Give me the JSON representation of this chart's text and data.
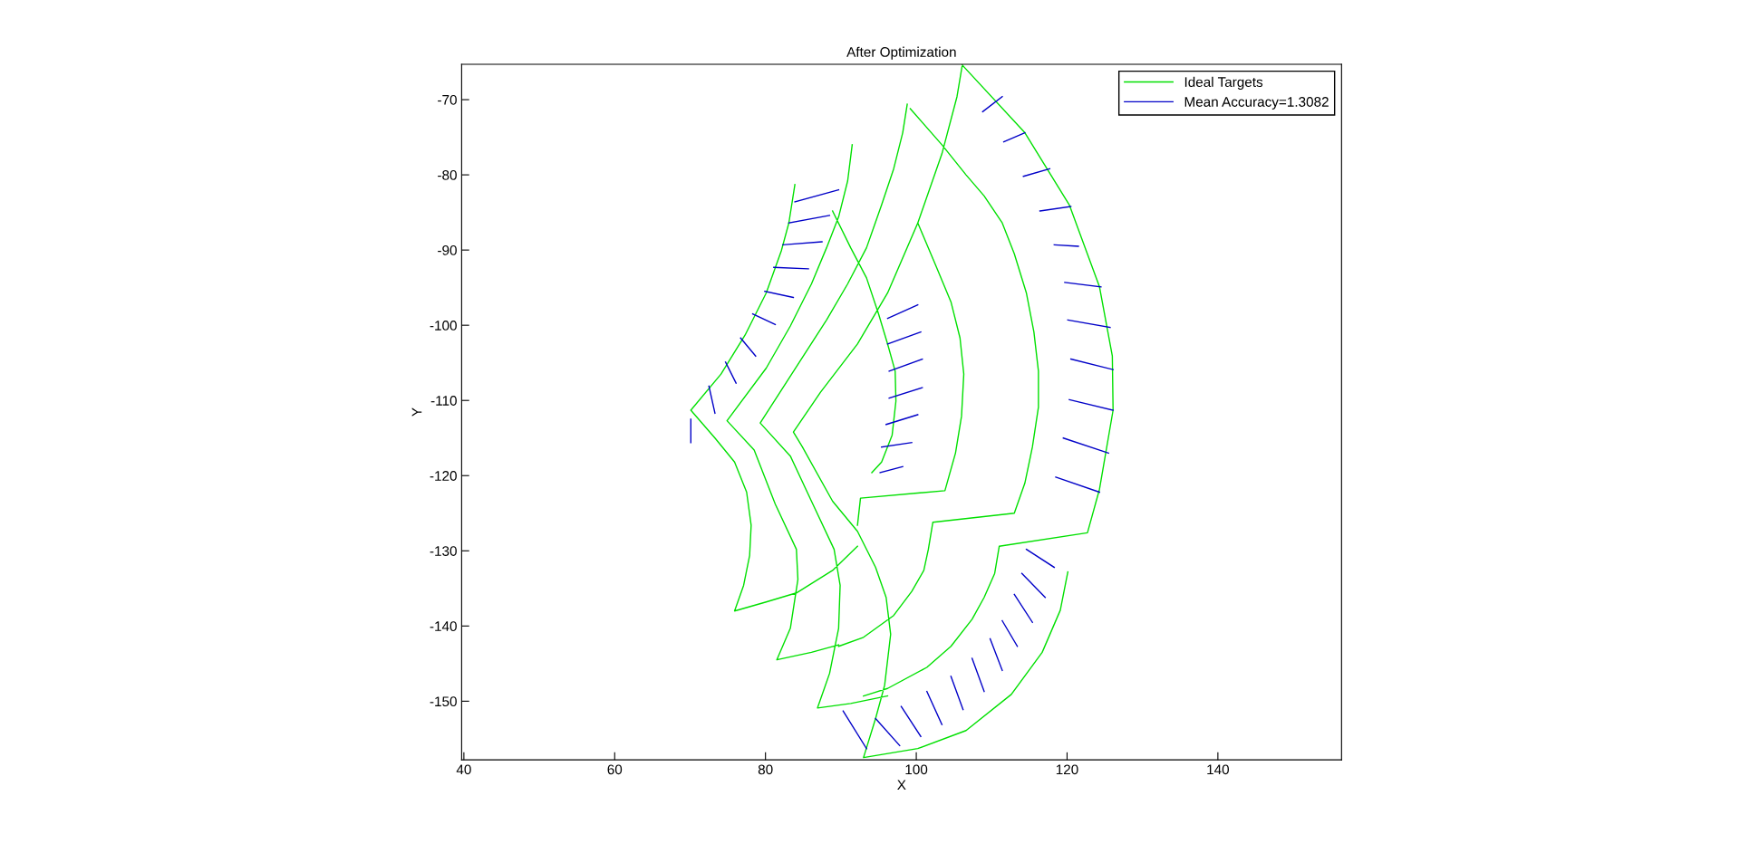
{
  "chart_data": {
    "type": "line",
    "title": "After Optimization",
    "xlabel": "X",
    "ylabel": "Y",
    "xlim": [
      39.7,
      156.4
    ],
    "ylim": [
      -157.8,
      -65.3
    ],
    "xticks": [
      40,
      60,
      80,
      100,
      120,
      140
    ],
    "yticks": [
      -150,
      -140,
      -130,
      -120,
      -110,
      -100,
      -90,
      -80,
      -70
    ],
    "grid": false,
    "legend": "top right",
    "marker": "none",
    "line_style": "solid",
    "series": [
      {
        "name": "Ideal Targets",
        "color": "#00e000",
        "x": [
          106.1,
          114.4,
          120.3,
          124.3,
          126.0,
          126.1,
          124.3,
          122.7,
          111.0,
          110.4,
          109.0,
          107.4,
          104.6,
          101.4,
          96.2,
          93.0,
          null,
          120.1,
          119.1,
          116.7,
          112.6,
          106.6,
          100.2,
          93.0,
          94.6,
          95.8,
          96.6,
          96.0,
          94.6,
          92.2,
          88.9,
          84.9,
          83.7,
          87.3,
          92.2,
          96.2,
          100.2,
          103.4,
          105.4,
          106.1,
          null,
          99.2,
          103.4,
          106.6,
          109.0,
          111.4,
          113.0,
          114.6,
          115.6,
          116.2,
          116.2,
          115.4,
          114.4,
          113.0,
          102.2,
          101.6,
          101.0,
          99.4,
          97.0,
          93.0,
          89.7,
          null,
          100.2,
          102.6,
          104.6,
          105.8,
          106.3,
          106.0,
          105.2,
          103.8,
          92.6,
          92.2,
          null,
          88.9,
          91.3,
          93.4,
          95.0,
          96.2,
          97.2,
          97.3,
          96.8,
          95.4,
          94.1,
          null,
          83.9,
          83.1,
          82.1,
          80.1,
          77.3,
          74.1,
          70.1,
          73.3,
          75.9,
          77.5,
          78.1,
          77.9,
          77.1,
          75.9,
          80.1,
          84.1,
          88.9,
          92.2,
          null,
          91.5,
          90.9,
          89.7,
          88.1,
          86.1,
          83.3,
          80.1,
          74.9,
          78.5,
          81.3,
          84.1,
          84.3,
          83.3,
          81.5,
          86.1,
          89.7,
          null,
          98.8,
          98.2,
          97.0,
          95.4,
          93.4,
          90.9,
          88.1,
          84.5,
          79.3,
          83.3,
          86.1,
          89.1,
          89.9,
          89.7,
          88.5,
          86.9,
          91.3,
          96.2
        ],
        "values": [
          -65.4,
          -74.4,
          -84.0,
          -94.9,
          -104.1,
          -111.3,
          -121.8,
          -127.6,
          -129.4,
          -133.0,
          -136.2,
          -139.1,
          -142.7,
          -145.5,
          -148.3,
          -149.3,
          null,
          -132.8,
          -137.9,
          -143.5,
          -149.1,
          -153.9,
          -156.3,
          -157.5,
          -152.3,
          -147.9,
          -141.1,
          -136.2,
          -132.2,
          -127.4,
          -123.4,
          -116.2,
          -114.2,
          -108.9,
          -102.5,
          -95.7,
          -86.4,
          -77.2,
          -69.6,
          -65.4,
          null,
          -71.2,
          -76.0,
          -80.0,
          -82.8,
          -86.4,
          -90.5,
          -95.7,
          -100.9,
          -106.1,
          -110.9,
          -116.2,
          -121.0,
          -125.0,
          -126.2,
          -129.8,
          -132.6,
          -135.4,
          -138.6,
          -141.5,
          -142.7,
          null,
          -86.4,
          -92.1,
          -96.9,
          -101.7,
          -106.5,
          -112.1,
          -117.0,
          -122.0,
          -123.0,
          -126.6,
          null,
          -84.8,
          -89.7,
          -93.7,
          -98.5,
          -102.5,
          -106.1,
          -110.1,
          -114.6,
          -118.2,
          -119.6,
          null,
          -81.3,
          -86.4,
          -90.1,
          -95.7,
          -101.3,
          -106.5,
          -111.3,
          -115.0,
          -118.2,
          -122.2,
          -126.6,
          -130.6,
          -134.6,
          -138.0,
          -136.8,
          -135.6,
          -132.6,
          -129.4,
          null,
          -76.0,
          -80.8,
          -85.6,
          -89.7,
          -94.5,
          -100.1,
          -105.7,
          -112.7,
          -116.6,
          -123.8,
          -129.8,
          -133.8,
          -140.3,
          -144.5,
          -143.5,
          -142.5,
          null,
          -70.6,
          -74.4,
          -79.2,
          -84.0,
          -89.7,
          -94.5,
          -99.3,
          -104.9,
          -113.0,
          -117.4,
          -123.4,
          -129.8,
          -134.6,
          -140.3,
          -146.3,
          -150.9,
          -150.3,
          -149.3
        ]
      },
      {
        "name": "Mean Accuracy=1.3082",
        "color": "#0000c8",
        "x": [
          121.5,
          118.3,
          null,
          124.5,
          119.7,
          null,
          125.7,
          120.1,
          null,
          126.1,
          120.5,
          null,
          126.1,
          120.3,
          null,
          125.5,
          119.5,
          null,
          124.3,
          118.5,
          null,
          111.4,
          108.8,
          null,
          114.4,
          111.6,
          null,
          117.7,
          114.2,
          null,
          120.5,
          116.4,
          null,
          83.9,
          89.7,
          null,
          83.1,
          88.5,
          null,
          82.3,
          87.5,
          null,
          81.1,
          85.7,
          null,
          79.9,
          83.7,
          null,
          78.3,
          81.3,
          null,
          76.7,
          78.7,
          null,
          74.7,
          76.1,
          null,
          72.5,
          73.3,
          null,
          70.1,
          70.1,
          null,
          118.3,
          114.6,
          null,
          117.1,
          114.0,
          null,
          115.4,
          113.0,
          null,
          113.4,
          111.4,
          null,
          111.4,
          109.8,
          null,
          109.0,
          107.4,
          null,
          106.2,
          104.6,
          null,
          103.4,
          101.4,
          null,
          100.6,
          98.0,
          null,
          97.8,
          94.6,
          null,
          93.4,
          90.3
        ],
        "values": [
          -89.5,
          -89.3,
          null,
          -94.9,
          -94.3,
          null,
          -100.3,
          -99.3,
          null,
          -105.9,
          -104.5,
          null,
          -111.3,
          -109.9,
          null,
          -117.0,
          -115.0,
          null,
          -122.2,
          -120.2,
          null,
          -69.6,
          -71.6,
          null,
          -74.4,
          -75.6,
          null,
          -79.2,
          -80.2,
          null,
          -84.2,
          -84.8,
          null,
          -83.6,
          -82.0,
          null,
          -86.4,
          -85.4,
          null,
          -89.3,
          -88.9,
          null,
          -92.3,
          -92.5,
          null,
          -95.5,
          -96.3,
          null,
          -98.5,
          -99.9,
          null,
          -101.7,
          -104.1,
          null,
          -104.9,
          -107.7,
          null,
          -108.1,
          -111.7,
          null,
          -112.5,
          -115.6,
          null,
          -132.2,
          -129.8,
          null,
          -136.2,
          -133.0,
          null,
          -139.5,
          -135.8,
          null,
          -142.7,
          -139.3,
          null,
          -145.9,
          -141.7,
          null,
          -148.7,
          -144.3,
          null,
          -151.1,
          -146.7,
          null,
          -153.1,
          -148.7,
          null,
          -154.7,
          -150.7,
          null,
          -155.9,
          -152.3,
          null,
          -156.3,
          -151.3
        ]
      },
      {
        "color": "#0000c8",
        "x": [
          96.2,
          100.2
        ],
        "values": [
          -99.1,
          -97.3
        ]
      },
      {
        "color": "#0000c8",
        "x": [
          96.2,
          100.6
        ],
        "values": [
          -102.5,
          -100.9
        ]
      },
      {
        "color": "#0000c8",
        "x": [
          96.4,
          100.8
        ],
        "values": [
          -106.1,
          -104.5
        ]
      },
      {
        "color": "#0000c8",
        "x": [
          96.4,
          100.8
        ],
        "values": [
          -109.7,
          -108.3
        ]
      },
      {
        "color": "#0000c8",
        "x": [
          96.0,
          100.2
        ],
        "values": [
          -113.2,
          -111.9
        ]
      },
      {
        "color": "#0000c8",
        "x": [
          95.4,
          99.4
        ],
        "values": [
          -116.2,
          -115.6
        ]
      },
      {
        "color": "#0000c8",
        "x": [
          95.2,
          98.2
        ],
        "values": [
          -119.6,
          -118.8
        ]
      }
    ]
  }
}
